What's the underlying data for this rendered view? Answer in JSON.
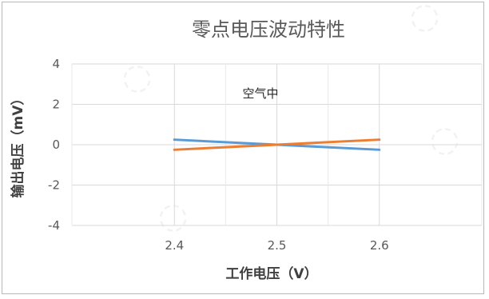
{
  "chart_data": {
    "type": "line",
    "title": "零点电压波动特性",
    "xlabel": "工作电压（V）",
    "ylabel": "输出电压（mV）",
    "annotation": "空气中",
    "x": [
      2.4,
      2.5,
      2.6
    ],
    "x_tick_labels": [
      "2.4",
      "2.5",
      "2.6"
    ],
    "y_tick_labels": [
      "4",
      "2",
      "0",
      "-2",
      "-4"
    ],
    "xlim": [
      2.4,
      2.6
    ],
    "ylim": [
      -4,
      4
    ],
    "grid": true,
    "series": [
      {
        "values": [
          0.25,
          0.0,
          -0.25
        ],
        "color": "#5b9bd5"
      },
      {
        "values": [
          -0.25,
          0.0,
          0.25
        ],
        "color": "#ed7d31"
      }
    ]
  }
}
